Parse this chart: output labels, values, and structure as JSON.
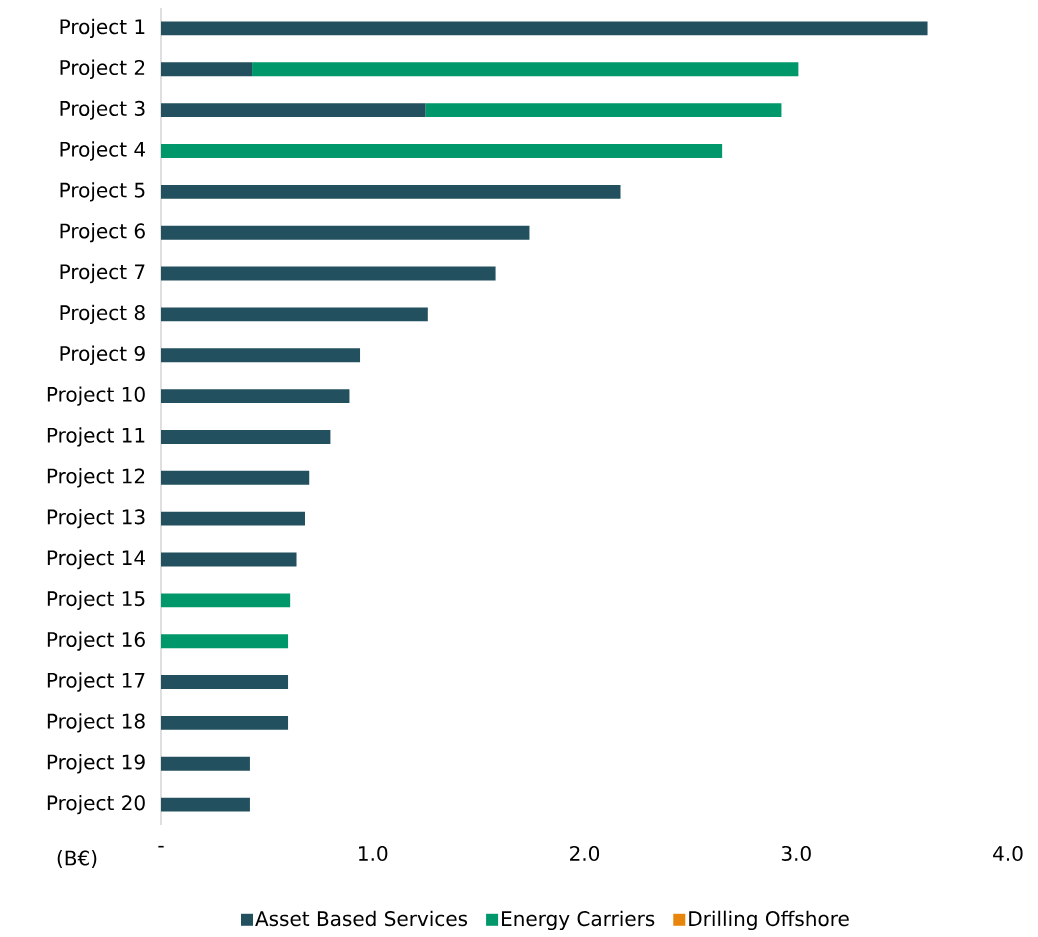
{
  "chart_data": {
    "type": "bar",
    "orientation": "horizontal",
    "stacked": true,
    "xlabel": "(B€)",
    "categories": [
      "Project 1",
      "Project 2",
      "Project 3",
      "Project 4",
      "Project 5",
      "Project 6",
      "Project 7",
      "Project 8",
      "Project 9",
      "Project 10",
      "Project 11",
      "Project 12",
      "Project 13",
      "Project 14",
      "Project 15",
      "Project 16",
      "Project 17",
      "Project 18",
      "Project 19",
      "Project 20"
    ],
    "series": [
      {
        "name": "Asset Based Services",
        "color": "#23505f",
        "values": [
          3.62,
          0.43,
          1.25,
          null,
          2.17,
          1.74,
          1.58,
          1.26,
          0.94,
          0.89,
          0.8,
          0.7,
          0.68,
          0.64,
          null,
          null,
          0.6,
          0.6,
          0.42,
          0.42
        ]
      },
      {
        "name": "Energy Carriers",
        "color": "#00976a",
        "values": [
          null,
          2.58,
          1.68,
          2.65,
          null,
          null,
          null,
          null,
          null,
          null,
          null,
          null,
          null,
          null,
          0.61,
          0.6,
          null,
          null,
          null,
          null
        ]
      },
      {
        "name": "Drilling Offshore",
        "color": "#e8850c",
        "values": [
          null,
          null,
          null,
          null,
          null,
          null,
          null,
          null,
          null,
          null,
          null,
          null,
          null,
          null,
          null,
          null,
          null,
          null,
          null,
          null
        ]
      }
    ],
    "xlim": [
      0,
      4
    ],
    "xticks": [
      {
        "value": 0,
        "label": "-"
      },
      {
        "value": 1,
        "label": "1.0"
      },
      {
        "value": 2,
        "label": "2.0"
      },
      {
        "value": 3,
        "label": "3.0"
      },
      {
        "value": 4,
        "label": "4.0"
      }
    ],
    "legend": "bottom"
  }
}
